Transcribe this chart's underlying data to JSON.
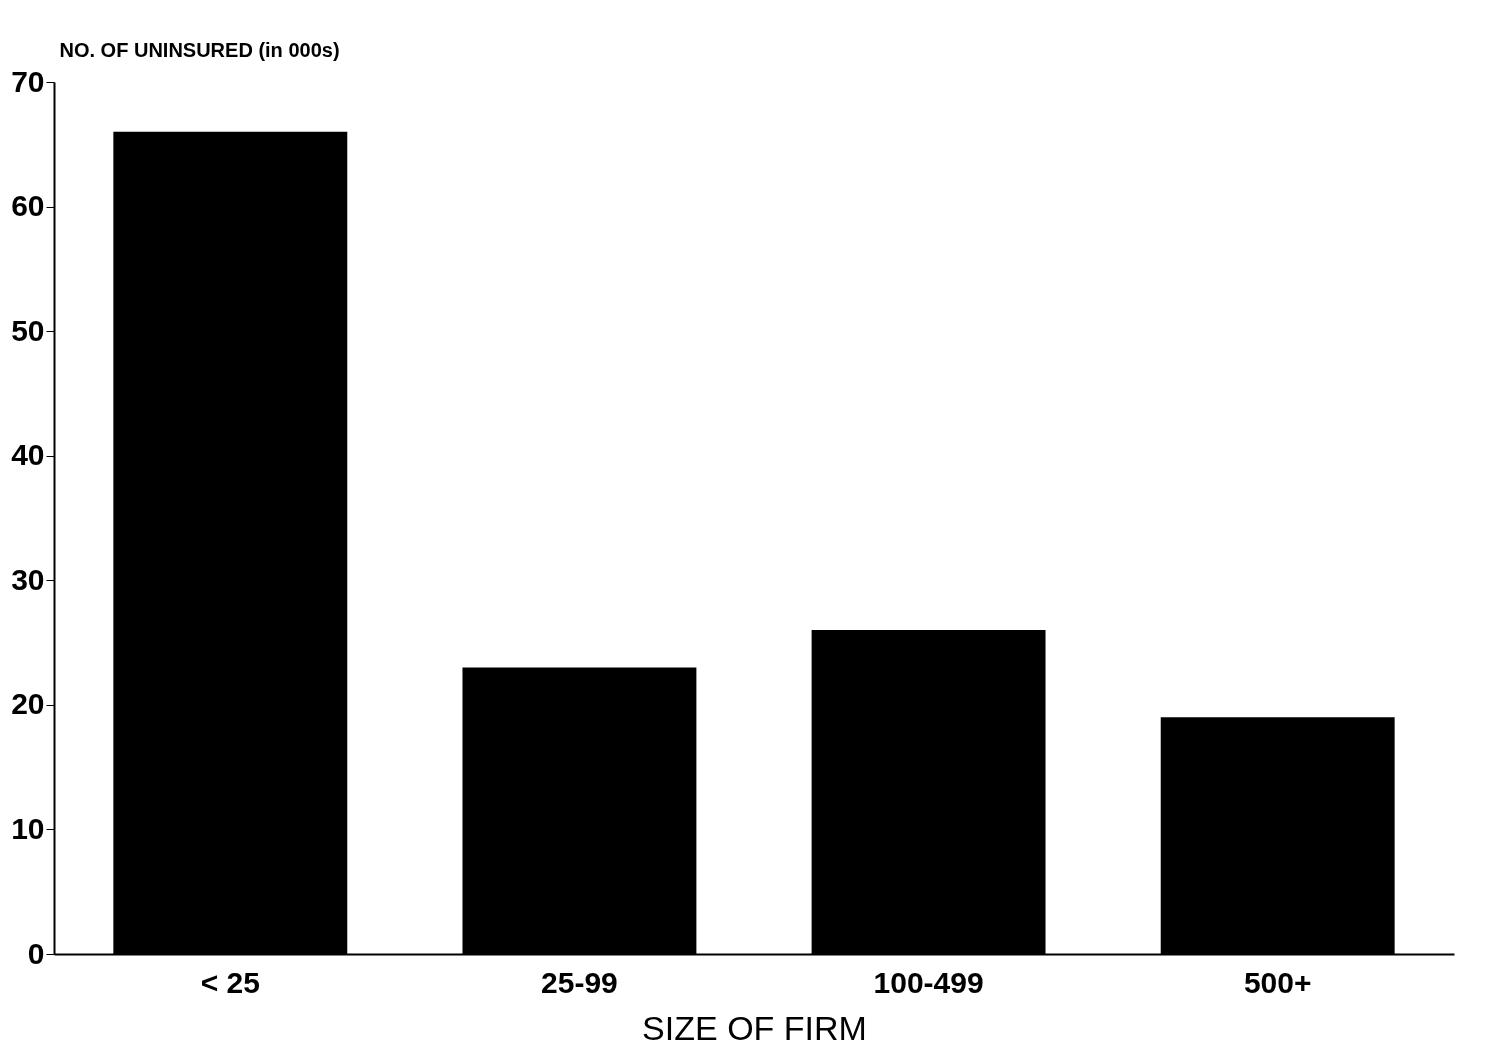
{
  "chart_data": {
    "type": "bar",
    "xlabel": "SIZE OF FIRM",
    "ylabel": "NO. OF UNINSURED (in 000s)",
    "categories": [
      "< 25",
      "25-99",
      "100-499",
      "500+"
    ],
    "values": [
      66,
      23,
      26,
      19
    ],
    "color": "#000000",
    "ylim": [
      0,
      70
    ],
    "yticks": [
      0,
      10,
      20,
      30,
      40,
      50,
      60,
      70
    ],
    "grid": false
  }
}
